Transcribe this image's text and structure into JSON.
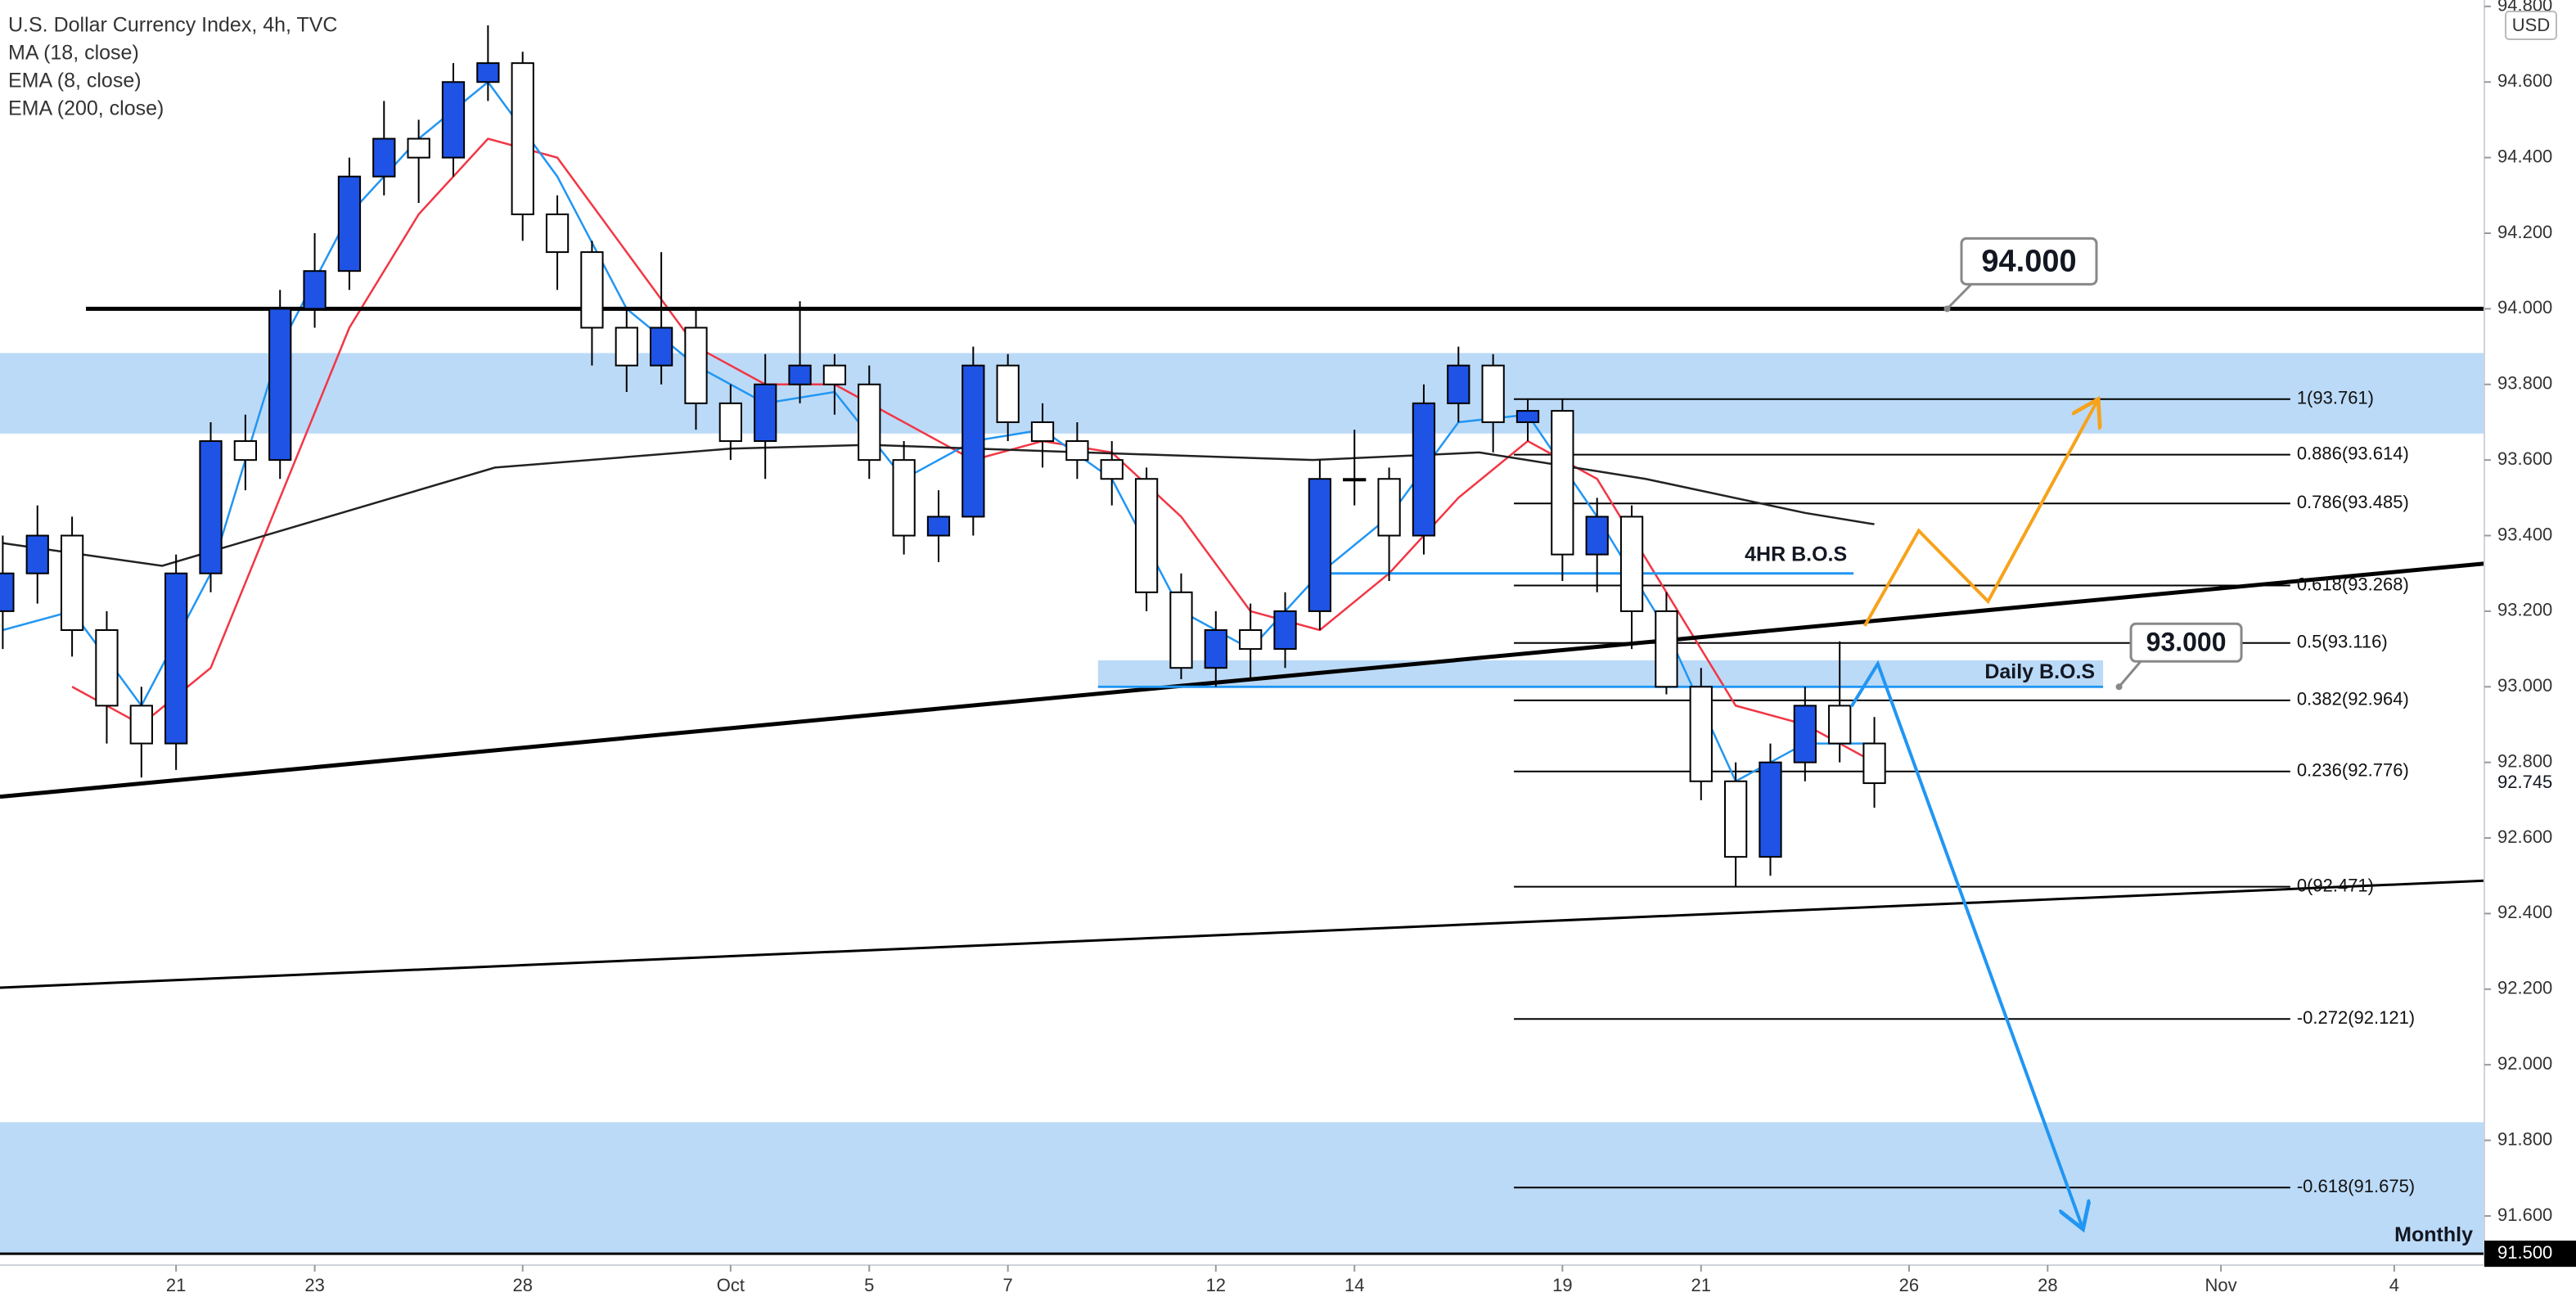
{
  "chart_data": {
    "type": "candlestick",
    "title": "U.S. Dollar Currency Index, 4h, TVC",
    "currency": "USD",
    "up_color": "#1e53e5",
    "down_color": "#ffffff",
    "x": [
      -2.5,
      -2,
      -1.5,
      -1,
      -0.5,
      0,
      0.5,
      1,
      1.5,
      2,
      2.5,
      3,
      3.5,
      4,
      4.5,
      5,
      5.5,
      6,
      6.5,
      7,
      7.5,
      8,
      8.5,
      9,
      9.5,
      10,
      10.5,
      11,
      11.5,
      12,
      12.5,
      13,
      13.5,
      14,
      14.5,
      15,
      15.5,
      16,
      16.5,
      17,
      17.5,
      18,
      18.5,
      19,
      19.5,
      20,
      20.5,
      21,
      21.5,
      22,
      22.5,
      23,
      23.5,
      24,
      24.5
    ],
    "open": [
      93.2,
      93.3,
      93.4,
      93.15,
      92.95,
      92.85,
      93.3,
      93.65,
      93.6,
      94.0,
      94.1,
      94.35,
      94.45,
      94.4,
      94.6,
      94.65,
      94.25,
      94.15,
      93.95,
      93.85,
      93.95,
      93.75,
      93.65,
      93.8,
      93.85,
      93.8,
      93.6,
      93.4,
      93.45,
      93.85,
      93.7,
      93.65,
      93.6,
      93.55,
      93.25,
      93.05,
      93.15,
      93.1,
      93.2,
      93.55,
      93.55,
      93.4,
      93.75,
      93.85,
      93.7,
      93.73,
      93.35,
      93.45,
      93.2,
      93.0,
      92.75,
      92.55,
      92.8,
      92.95,
      92.85
    ],
    "high": [
      93.4,
      93.48,
      93.45,
      93.2,
      93.0,
      93.35,
      93.7,
      93.72,
      94.05,
      94.2,
      94.4,
      94.55,
      94.5,
      94.65,
      94.75,
      94.68,
      94.3,
      94.18,
      94.0,
      94.15,
      94.0,
      93.8,
      93.88,
      94.02,
      93.88,
      93.85,
      93.65,
      93.52,
      93.9,
      93.88,
      93.75,
      93.7,
      93.65,
      93.58,
      93.3,
      93.2,
      93.22,
      93.25,
      93.6,
      93.68,
      93.58,
      93.8,
      93.9,
      93.88,
      93.76,
      93.76,
      93.5,
      93.48,
      93.25,
      93.05,
      92.8,
      92.85,
      93.0,
      93.12,
      92.92
    ],
    "low": [
      93.1,
      93.22,
      93.08,
      92.85,
      92.76,
      92.78,
      93.25,
      93.52,
      93.55,
      93.95,
      94.05,
      94.3,
      94.28,
      94.35,
      94.55,
      94.18,
      94.05,
      93.85,
      93.78,
      93.8,
      93.68,
      93.6,
      93.55,
      93.75,
      93.72,
      93.55,
      93.35,
      93.33,
      93.4,
      93.65,
      93.58,
      93.55,
      93.48,
      93.2,
      93.02,
      93.0,
      93.02,
      93.05,
      93.15,
      93.48,
      93.28,
      93.35,
      93.7,
      93.62,
      93.65,
      93.28,
      93.25,
      93.1,
      92.98,
      92.7,
      92.47,
      92.5,
      92.75,
      92.8,
      92.68
    ],
    "close": [
      93.3,
      93.4,
      93.15,
      92.95,
      92.85,
      93.3,
      93.65,
      93.6,
      94.0,
      94.1,
      94.35,
      94.45,
      94.4,
      94.6,
      94.65,
      94.25,
      94.15,
      93.95,
      93.85,
      93.95,
      93.75,
      93.65,
      93.8,
      93.85,
      93.8,
      93.6,
      93.4,
      93.45,
      93.85,
      93.7,
      93.65,
      93.6,
      93.55,
      93.25,
      93.05,
      93.15,
      93.1,
      93.2,
      93.55,
      93.55,
      93.4,
      93.75,
      93.85,
      93.7,
      93.73,
      93.35,
      93.45,
      93.2,
      93.0,
      92.75,
      92.55,
      92.8,
      92.95,
      92.85,
      92.745
    ],
    "indicators": [
      {
        "name": "MA (18, close)",
        "color": "#f23645",
        "x": [
          -1.5,
          -0.5,
          0.5,
          1.5,
          2.5,
          3.5,
          4.5,
          5.5,
          6.5,
          7.5,
          8.5,
          9.5,
          10.5,
          11.5,
          12.5,
          13.5,
          14.5,
          15.5,
          16.5,
          17.5,
          18.5,
          19.5,
          20.5,
          21.5,
          22.5,
          23.5,
          24.5
        ],
        "values": [
          93.0,
          92.9,
          93.05,
          93.5,
          93.95,
          94.25,
          94.45,
          94.4,
          94.15,
          93.9,
          93.8,
          93.8,
          93.7,
          93.6,
          93.65,
          93.62,
          93.45,
          93.2,
          93.15,
          93.3,
          93.5,
          93.65,
          93.55,
          93.25,
          92.95,
          92.9,
          92.8
        ]
      },
      {
        "name": "EMA (8, close)",
        "color": "#2196f3",
        "x": [
          -2.5,
          -1.5,
          -0.5,
          0.5,
          1.5,
          2.5,
          3.5,
          4.5,
          5.5,
          6.5,
          7.5,
          8.5,
          9.5,
          10.5,
          11.5,
          12.5,
          13.5,
          14.5,
          15.5,
          16.5,
          17.5,
          18.5,
          19.5,
          20.5,
          21.5,
          22.5,
          23.5,
          24.5
        ],
        "values": [
          93.15,
          93.2,
          92.95,
          93.3,
          93.9,
          94.25,
          94.45,
          94.6,
          94.35,
          94.0,
          93.85,
          93.75,
          93.78,
          93.55,
          93.65,
          93.68,
          93.55,
          93.2,
          93.1,
          93.3,
          93.45,
          93.7,
          93.72,
          93.45,
          93.15,
          92.75,
          92.85,
          92.85
        ]
      },
      {
        "name": "EMA (200, close)",
        "color": "#222222",
        "x": [
          -2.5,
          -0.2,
          2.2,
          4.6,
          8,
          10,
          13.1,
          16.4,
          18.8,
          21.2,
          23.5,
          24.5
        ],
        "values": [
          93.38,
          93.32,
          93.45,
          93.58,
          93.63,
          93.64,
          93.62,
          93.6,
          93.62,
          93.55,
          93.46,
          93.43
        ]
      }
    ],
    "xlim": [
      -2.54,
      33.3
    ],
    "xticks": [
      {
        "value": 0,
        "label": "21"
      },
      {
        "value": 2,
        "label": "23"
      },
      {
        "value": 5,
        "label": "28"
      },
      {
        "value": 8,
        "label": "Oct"
      },
      {
        "value": 10,
        "label": "5"
      },
      {
        "value": 12,
        "label": "7"
      },
      {
        "value": 15,
        "label": "12"
      },
      {
        "value": 17,
        "label": "14"
      },
      {
        "value": 20,
        "label": "19"
      },
      {
        "value": 22,
        "label": "21"
      },
      {
        "value": 25,
        "label": "26"
      },
      {
        "value": 27,
        "label": "28"
      },
      {
        "value": 29.5,
        "label": "Nov"
      },
      {
        "value": 32,
        "label": "4"
      }
    ],
    "ylim": [
      91.47,
      94.817
    ],
    "yticks": [
      {
        "value": 91.6,
        "label": "91.600"
      },
      {
        "value": 91.8,
        "label": "91.800"
      },
      {
        "value": 92.0,
        "label": "92.000"
      },
      {
        "value": 92.2,
        "label": "92.200"
      },
      {
        "value": 92.4,
        "label": "92.400"
      },
      {
        "value": 92.6,
        "label": "92.600"
      },
      {
        "value": 92.8,
        "label": "92.800"
      },
      {
        "value": 93.0,
        "label": "93.000"
      },
      {
        "value": 93.2,
        "label": "93.200"
      },
      {
        "value": 93.4,
        "label": "93.400"
      },
      {
        "value": 93.6,
        "label": "93.600"
      },
      {
        "value": 93.8,
        "label": "93.800"
      },
      {
        "value": 94.0,
        "label": "94.000"
      },
      {
        "value": 94.2,
        "label": "94.200"
      },
      {
        "value": 94.4,
        "label": "94.400"
      },
      {
        "value": 94.6,
        "label": "94.600"
      },
      {
        "value": 94.8,
        "label": "94.800"
      }
    ],
    "grid": false,
    "price_labels": [
      {
        "value": 92.745,
        "label": "92.745"
      },
      {
        "value": 91.5,
        "label": "91.500",
        "box": "#000000"
      }
    ],
    "zones": [
      {
        "top": 93.883,
        "bottom": 93.67,
        "color": "#bbdaf7"
      },
      {
        "top": 93.07,
        "bottom": 93.004,
        "x": [
          13.3,
          27.8
        ],
        "color": "#bbdaf7",
        "label": "Daily B.O.S"
      },
      {
        "top": 91.848,
        "bottom": 91.5,
        "color": "#bbdaf7",
        "label": "Monthly"
      }
    ],
    "fib": {
      "x": [
        19.3,
        30.5
      ],
      "color": "#000000",
      "levels": [
        {
          "value": 93.761,
          "label": "1(93.761)"
        },
        {
          "value": 93.614,
          "label": "0.886(93.614)"
        },
        {
          "value": 93.485,
          "label": "0.786(93.485)"
        },
        {
          "value": 93.268,
          "label": "0.618(93.268)"
        },
        {
          "value": 93.116,
          "label": "0.5(93.116)"
        },
        {
          "value": 92.964,
          "label": "0.382(92.964)"
        },
        {
          "value": 92.776,
          "label": "0.236(92.776)"
        },
        {
          "value": 92.471,
          "label": "0(92.471)"
        },
        {
          "value": 92.121,
          "label": "-0.272(92.121)"
        },
        {
          "value": 91.675,
          "label": "-0.618(91.675)"
        }
      ]
    },
    "lines": [
      {
        "x": [
          -1.3,
          33.3
        ],
        "y": [
          94.0,
          94.0
        ],
        "color": "#000000",
        "width": 5,
        "callout": "94.000",
        "callout_x": 25.55
      },
      {
        "x": [
          -2.54,
          33.3
        ],
        "y": [
          92.709,
          93.326
        ],
        "color": "#000000",
        "width": 5
      },
      {
        "x": [
          -2.54,
          33.3
        ],
        "y": [
          92.204,
          92.487
        ],
        "color": "#000000",
        "width": 3
      },
      {
        "x": [
          16.5,
          24.2
        ],
        "y": [
          93.3,
          93.3
        ],
        "color": "#2196f3",
        "width": 3,
        "label": "4HR B.O.S"
      },
      {
        "x": [
          13.3,
          27.8
        ],
        "y": [
          93.0,
          93.0
        ],
        "color": "#2196f3",
        "width": 3,
        "callout": "93.000",
        "callout_x": 28.03
      },
      {
        "x": [
          -2.54,
          33.3
        ],
        "y": [
          91.5,
          91.5
        ],
        "color": "#000000",
        "width": 3
      },
      {
        "x": [
          24.36,
          25.14,
          26.14,
          27.73
        ],
        "y": [
          93.161,
          93.413,
          93.226,
          93.761
        ],
        "color": "#f7a21b",
        "width": 4,
        "arrow": true
      },
      {
        "x": [
          24.17,
          24.55,
          27.51
        ],
        "y": [
          92.948,
          93.061,
          91.565
        ],
        "color": "#2196f3",
        "width": 4,
        "arrow": true
      }
    ]
  }
}
